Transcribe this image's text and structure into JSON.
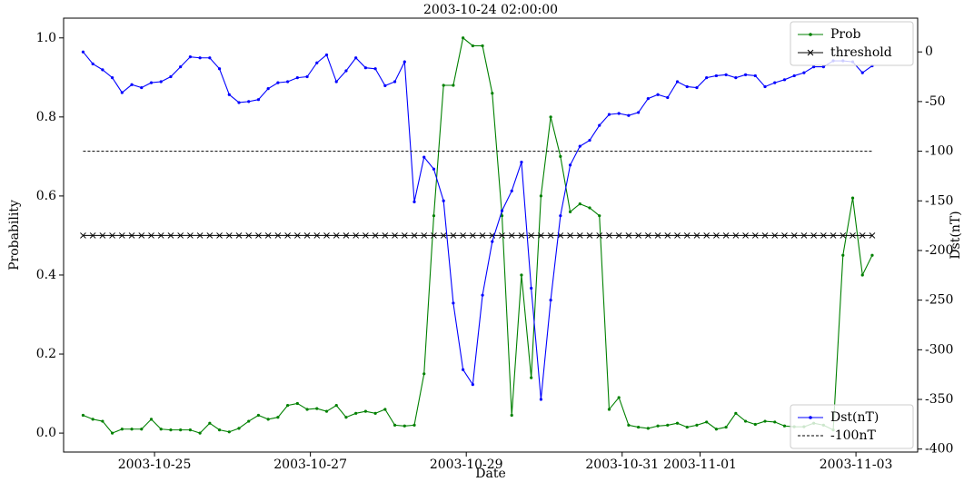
{
  "chart_data": {
    "type": "line",
    "title": "2003-10-24 02:00:00",
    "xlabel": "Date",
    "ylabel": "Probability",
    "y2label": "Dst(nT)",
    "x": [
      "2003-10-24 02:00",
      "2003-10-24 05:00",
      "2003-10-24 08:00",
      "2003-10-24 11:00",
      "2003-10-24 14:00",
      "2003-10-24 17:00",
      "2003-10-24 20:00",
      "2003-10-24 23:00",
      "2003-10-25 02:00",
      "2003-10-25 05:00",
      "2003-10-25 08:00",
      "2003-10-25 11:00",
      "2003-10-25 14:00",
      "2003-10-25 17:00",
      "2003-10-25 20:00",
      "2003-10-25 23:00",
      "2003-10-26 02:00",
      "2003-10-26 05:00",
      "2003-10-26 08:00",
      "2003-10-26 11:00",
      "2003-10-26 14:00",
      "2003-10-26 17:00",
      "2003-10-26 20:00",
      "2003-10-26 23:00",
      "2003-10-27 02:00",
      "2003-10-27 05:00",
      "2003-10-27 08:00",
      "2003-10-27 11:00",
      "2003-10-27 14:00",
      "2003-10-27 17:00",
      "2003-10-27 20:00",
      "2003-10-27 23:00",
      "2003-10-28 02:00",
      "2003-10-28 05:00",
      "2003-10-28 08:00",
      "2003-10-28 11:00",
      "2003-10-28 14:00",
      "2003-10-28 17:00",
      "2003-10-28 20:00",
      "2003-10-28 23:00",
      "2003-10-29 02:00",
      "2003-10-29 05:00",
      "2003-10-29 08:00",
      "2003-10-29 11:00",
      "2003-10-29 14:00",
      "2003-10-29 17:00",
      "2003-10-29 20:00",
      "2003-10-29 23:00",
      "2003-10-30 02:00",
      "2003-10-30 05:00",
      "2003-10-30 08:00",
      "2003-10-30 11:00",
      "2003-10-30 14:00",
      "2003-10-30 17:00",
      "2003-10-30 20:00",
      "2003-10-30 23:00",
      "2003-10-31 02:00",
      "2003-10-31 05:00",
      "2003-10-31 08:00",
      "2003-10-31 11:00",
      "2003-10-31 14:00",
      "2003-10-31 17:00",
      "2003-10-31 20:00",
      "2003-10-31 23:00",
      "2003-11-01 02:00",
      "2003-11-01 05:00",
      "2003-11-01 08:00",
      "2003-11-01 11:00",
      "2003-11-01 14:00",
      "2003-11-01 17:00",
      "2003-11-01 20:00",
      "2003-11-01 23:00",
      "2003-11-02 02:00",
      "2003-11-02 05:00",
      "2003-11-02 08:00",
      "2003-11-02 11:00",
      "2003-11-02 14:00",
      "2003-11-02 17:00",
      "2003-11-02 20:00",
      "2003-11-02 23:00",
      "2003-11-03 02:00",
      "2003-11-03 05:00"
    ],
    "series": [
      {
        "name": "Prob",
        "color": "#008000",
        "axis": "y",
        "marker": "dot",
        "values": [
          0.045,
          0.035,
          0.03,
          0.0,
          0.01,
          0.01,
          0.01,
          0.035,
          0.01,
          0.008,
          0.008,
          0.008,
          0.0,
          0.025,
          0.008,
          0.003,
          0.012,
          0.03,
          0.045,
          0.035,
          0.04,
          0.07,
          0.075,
          0.06,
          0.062,
          0.055,
          0.07,
          0.04,
          0.05,
          0.055,
          0.05,
          0.06,
          0.02,
          0.018,
          0.02,
          0.15,
          0.55,
          0.88,
          0.88,
          1.0,
          0.98,
          0.98,
          0.86,
          0.55,
          0.045,
          0.4,
          0.14,
          0.6,
          0.8,
          0.7,
          0.56,
          0.58,
          0.57,
          0.55,
          0.06,
          0.09,
          0.02,
          0.015,
          0.012,
          0.018,
          0.02,
          0.025,
          0.015,
          0.02,
          0.028,
          0.01,
          0.015,
          0.05,
          0.03,
          0.022,
          0.03,
          0.028,
          0.018,
          0.016,
          0.016,
          0.025,
          0.02,
          0.008,
          0.45,
          0.595,
          0.4,
          0.45
        ]
      },
      {
        "name": "threshold",
        "color": "#000000",
        "axis": "y",
        "marker": "x",
        "value": 0.5
      },
      {
        "name": "Dst(nT)",
        "color": "#0000ff",
        "axis": "y2",
        "marker": "dot",
        "values": [
          0,
          -12,
          -18,
          -26,
          -41,
          -33,
          -36,
          -31,
          -30,
          -25,
          -15,
          -5,
          -6,
          -6,
          -17,
          -43,
          -51,
          -50,
          -48,
          -37,
          -31,
          -30,
          -26,
          -25,
          -11,
          -3,
          -30,
          -19,
          -6,
          -16,
          -17,
          -34,
          -30,
          -10,
          -151,
          -106,
          -118,
          -150,
          -253,
          -320,
          -335,
          -245,
          -191,
          -160,
          -140,
          -111,
          -238,
          -350,
          -250,
          -165,
          -114,
          -95,
          -89,
          -74,
          -63,
          -62,
          -64,
          -61,
          -47,
          -43,
          -46,
          -30,
          -35,
          -36,
          -26,
          -24,
          -23,
          -26,
          -23,
          -24,
          -35,
          -31,
          -28,
          -24,
          -21,
          -15,
          -15,
          -9,
          -9,
          -10,
          -21,
          -14
        ]
      },
      {
        "name": "-100nT",
        "color": "#000000",
        "axis": "y2",
        "linestyle": "dashed",
        "value": -100
      }
    ],
    "xlim": [
      "2003-10-23 20:00",
      "2003-11-03 19:00"
    ],
    "xticks": [
      "2003-10-25",
      "2003-10-27",
      "2003-10-29",
      "2003-10-31",
      "2003-11-01",
      "2003-11-03"
    ],
    "ylim": [
      -0.048,
      1.05
    ],
    "yticks": [
      {
        "value": 0,
        "label": "0.0"
      },
      0.2,
      0.4,
      0.6,
      0.8,
      {
        "value": 1,
        "label": "1.0"
      }
    ],
    "y2lim": [
      -403,
      34
    ],
    "y2ticks": [
      0,
      -50,
      -100,
      -150,
      -200,
      -250,
      -300,
      -350,
      -400
    ],
    "legend": {
      "y": "upper right",
      "y2": "lower right"
    }
  }
}
